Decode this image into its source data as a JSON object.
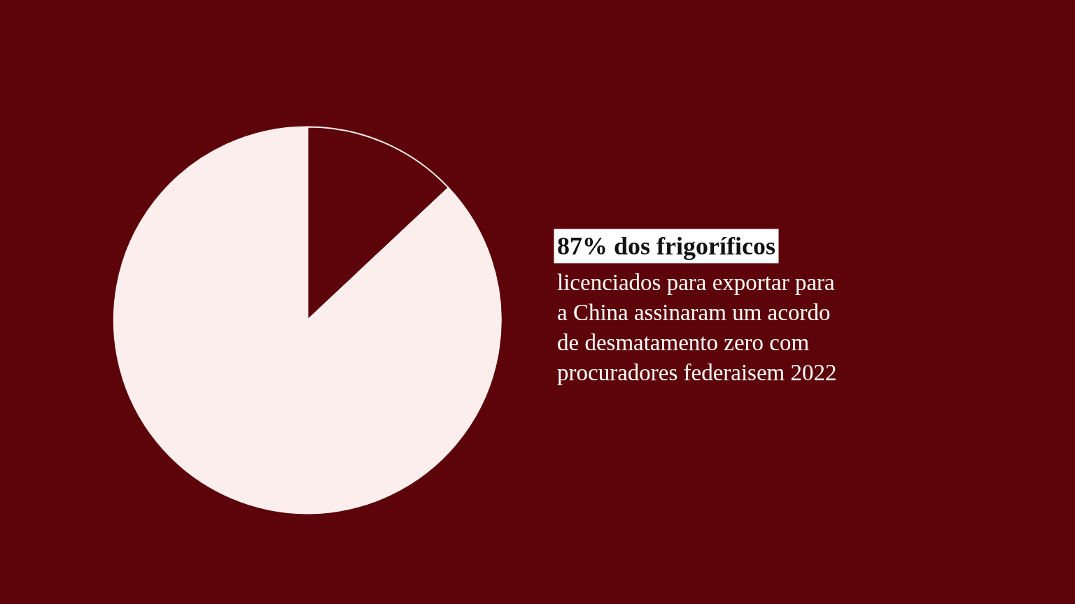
{
  "chart_data": {
    "type": "pie",
    "title": "87% dos frigoríficos",
    "annotations": [
      "licenciados para exportar para\na China assinaram um acordo\nde desmatamento zero com\nprocuradores federaisem 2022"
    ],
    "categories": [
      null,
      null
    ],
    "values": [
      13,
      87
    ],
    "colors": [
      "#5c0409",
      "#fdeeee"
    ],
    "legend": false
  }
}
